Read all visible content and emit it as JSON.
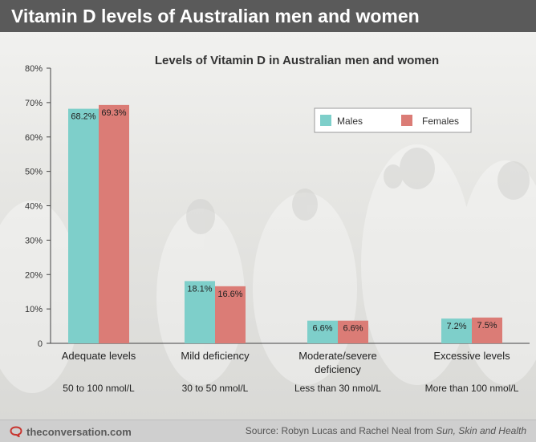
{
  "header": {
    "title": "Vitamin D levels of Australian men and women"
  },
  "footer": {
    "brand": "theconversation.com",
    "source_prefix": "Source: Robyn Lucas and Rachel Neal from ",
    "source_italic": "Sun, Skin and Health"
  },
  "colors": {
    "males": "#7ecfca",
    "females": "#db7c76",
    "header_bg": "#5a5a5a",
    "brand_red": "#c8342e"
  },
  "icons": {
    "brand": "speech-bubble-icon"
  },
  "chart_data": {
    "type": "bar",
    "title": "Levels of Vitamin D in Australian men and women",
    "categories": [
      "Adequate levels",
      "Mild deficiency",
      "Moderate/severe deficiency",
      "Excessive levels"
    ],
    "category_label_lines": [
      [
        "Adequate levels"
      ],
      [
        "Mild deficiency"
      ],
      [
        "Moderate/severe",
        "deficiency"
      ],
      [
        "Excessive levels"
      ]
    ],
    "sublabels": [
      "50 to 100 nmol/L",
      "30 to 50 nmol/L",
      "Less than 30 nmol/L",
      "More than 100 nmol/L"
    ],
    "series": [
      {
        "name": "Males",
        "values": [
          68.2,
          18.1,
          6.6,
          7.2
        ],
        "labels": [
          "68.2%",
          "18.1%",
          "6.6%",
          "7.2%"
        ]
      },
      {
        "name": "Females",
        "values": [
          69.3,
          16.6,
          6.6,
          7.5
        ],
        "labels": [
          "69.3%",
          "16.6%",
          "6.6%",
          "7.5%"
        ]
      }
    ],
    "ylim": [
      0,
      80
    ],
    "yticks": [
      0,
      10,
      20,
      30,
      40,
      50,
      60,
      70,
      80
    ],
    "ytick_labels": [
      "0",
      "10%",
      "20%",
      "30%",
      "40%",
      "50%",
      "60%",
      "70%",
      "80%"
    ],
    "xlabel": "",
    "ylabel": "",
    "grid": false,
    "legend_position": "top-right"
  }
}
